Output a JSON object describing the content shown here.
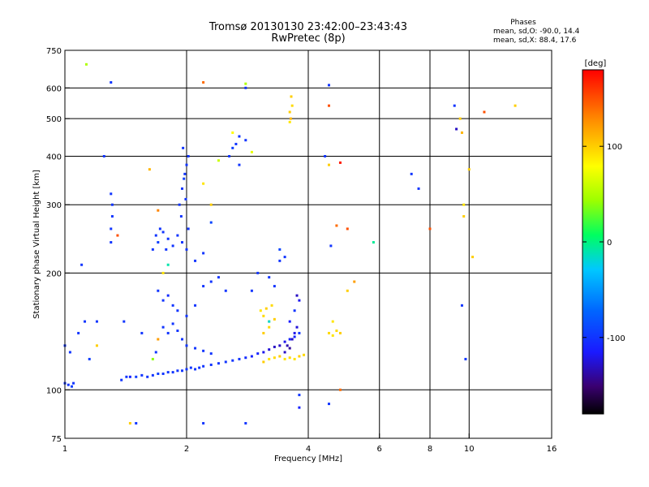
{
  "header": {
    "title_line1": "Tromsø 20130130 23:42:00–23:43:43",
    "title_line2": "RwPretec (8p)",
    "stats_heading": "Phases",
    "stats_line1": "mean, sd,O: -90.0, 14.4",
    "stats_line2": "mean, sd,X: 88.4, 17.6"
  },
  "chart_data": {
    "type": "scatter",
    "title": "Tromsø 20130130 23:42:00–23:43:43",
    "subtitle": "RwPretec (8p)",
    "xlabel": "Frequency [MHz]",
    "ylabel": "Stationary phase Virtual Height [km]",
    "x_scale": "log",
    "y_scale": "log",
    "xlim": [
      1,
      16
    ],
    "ylim": [
      75,
      750
    ],
    "x_ticks": [
      1,
      2,
      4,
      6,
      8,
      10,
      16
    ],
    "x_tick_labels": [
      "1",
      "2",
      "4",
      "6",
      "8",
      "10",
      "16"
    ],
    "y_ticks": [
      75,
      100,
      200,
      300,
      400,
      500,
      600,
      750
    ],
    "y_tick_labels": [
      "75",
      "100",
      "200",
      "300",
      "400",
      "500",
      "600",
      "750"
    ],
    "x_grid": [
      2,
      4,
      6,
      8,
      10
    ],
    "y_grid": [
      100,
      200,
      300,
      400,
      500,
      600
    ],
    "grid": true,
    "colorbar": {
      "label": "[deg]",
      "min": -180,
      "max": 180,
      "ticks": [
        -100,
        0,
        100
      ],
      "tick_labels": [
        "-100",
        "0",
        "100"
      ],
      "colormap": "rainbow"
    },
    "series": [
      {
        "points": [
          [
            1.0,
            104,
            -100
          ],
          [
            1.02,
            103,
            -100
          ],
          [
            1.04,
            102,
            -95
          ],
          [
            1.05,
            104,
            -100
          ],
          [
            1.38,
            106,
            -100
          ],
          [
            1.42,
            108,
            -100
          ],
          [
            1.45,
            108,
            -110
          ],
          [
            1.5,
            108,
            -95
          ],
          [
            1.55,
            109,
            -100
          ],
          [
            1.6,
            108,
            -100
          ],
          [
            1.65,
            109,
            -100
          ],
          [
            1.7,
            110,
            -95
          ],
          [
            1.75,
            110,
            -100
          ],
          [
            1.8,
            111,
            -100
          ],
          [
            1.85,
            111,
            -100
          ],
          [
            1.9,
            112,
            -100
          ],
          [
            1.95,
            112,
            -100
          ],
          [
            2.0,
            113,
            -100
          ],
          [
            2.05,
            114,
            -100
          ],
          [
            2.1,
            113,
            -100
          ],
          [
            2.15,
            114,
            -100
          ],
          [
            2.2,
            115,
            -100
          ],
          [
            2.3,
            116,
            -100
          ],
          [
            2.4,
            117,
            -100
          ],
          [
            2.5,
            118,
            -100
          ],
          [
            2.6,
            119,
            -100
          ],
          [
            2.7,
            120,
            -100
          ],
          [
            2.8,
            121,
            -105
          ],
          [
            2.9,
            122,
            -110
          ],
          [
            3.0,
            124,
            -110
          ],
          [
            3.1,
            125,
            -120
          ],
          [
            3.2,
            127,
            -125
          ],
          [
            3.3,
            129,
            -130
          ],
          [
            3.4,
            130,
            -130
          ],
          [
            3.5,
            133,
            -120
          ],
          [
            3.6,
            135,
            -110
          ],
          [
            3.7,
            137,
            -110
          ],
          [
            3.8,
            140,
            -100
          ],
          [
            3.1,
            118,
            100
          ],
          [
            3.2,
            120,
            90
          ],
          [
            3.3,
            121,
            95
          ],
          [
            3.4,
            122,
            100
          ],
          [
            3.5,
            120,
            90
          ],
          [
            3.6,
            121,
            95
          ],
          [
            3.7,
            120,
            90
          ],
          [
            3.8,
            122,
            100
          ],
          [
            3.9,
            123,
            95
          ],
          [
            3.05,
            160,
            90
          ],
          [
            3.1,
            155,
            95
          ],
          [
            3.15,
            162,
            100
          ],
          [
            3.2,
            150,
            90
          ],
          [
            3.25,
            165,
            95
          ],
          [
            3.3,
            152,
            100
          ],
          [
            3.2,
            145,
            95
          ],
          [
            4.5,
            140,
            95
          ],
          [
            4.6,
            138,
            90
          ],
          [
            4.7,
            142,
            95
          ],
          [
            4.8,
            140,
            100
          ],
          [
            4.6,
            150,
            90
          ],
          [
            3.5,
            125,
            -130
          ],
          [
            3.55,
            130,
            -135
          ],
          [
            3.6,
            128,
            -140
          ],
          [
            3.65,
            135,
            -130
          ],
          [
            3.7,
            140,
            -120
          ],
          [
            3.75,
            145,
            -125
          ],
          [
            3.6,
            150,
            -115
          ],
          [
            3.7,
            160,
            -100
          ],
          [
            3.75,
            175,
            -130
          ],
          [
            3.8,
            170,
            -120
          ],
          [
            1.65,
            230,
            -100
          ],
          [
            1.68,
            250,
            -100
          ],
          [
            1.7,
            240,
            -95
          ],
          [
            1.72,
            260,
            -100
          ],
          [
            1.75,
            255,
            -100
          ],
          [
            1.78,
            230,
            -100
          ],
          [
            1.8,
            245,
            -100
          ],
          [
            1.85,
            235,
            -100
          ],
          [
            1.9,
            250,
            -100
          ],
          [
            1.95,
            240,
            -100
          ],
          [
            2.0,
            230,
            -100
          ],
          [
            2.02,
            260,
            -100
          ],
          [
            1.92,
            300,
            -100
          ],
          [
            1.95,
            330,
            -100
          ],
          [
            1.98,
            360,
            -100
          ],
          [
            2.0,
            380,
            -100
          ],
          [
            2.02,
            400,
            -100
          ],
          [
            1.96,
            420,
            -100
          ],
          [
            1.97,
            350,
            -95
          ],
          [
            1.99,
            310,
            -100
          ],
          [
            1.94,
            280,
            -100
          ],
          [
            1.7,
            180,
            -100
          ],
          [
            1.75,
            170,
            -100
          ],
          [
            1.8,
            175,
            -105
          ],
          [
            1.85,
            165,
            -100
          ],
          [
            1.9,
            160,
            -100
          ],
          [
            2.0,
            155,
            -100
          ],
          [
            2.1,
            165,
            -100
          ],
          [
            2.2,
            185,
            -100
          ],
          [
            2.3,
            190,
            -100
          ],
          [
            2.4,
            195,
            -100
          ],
          [
            2.5,
            180,
            -100
          ],
          [
            1.75,
            145,
            -100
          ],
          [
            1.8,
            140,
            -100
          ],
          [
            1.85,
            148,
            -100
          ],
          [
            1.9,
            142,
            -100
          ],
          [
            1.95,
            135,
            -100
          ],
          [
            2.0,
            130,
            -100
          ],
          [
            2.1,
            128,
            -100
          ],
          [
            2.2,
            126,
            -100
          ],
          [
            2.3,
            124,
            -100
          ],
          [
            1.65,
            120,
            40
          ],
          [
            1.7,
            135,
            120
          ],
          [
            1.75,
            200,
            90
          ],
          [
            1.8,
            210,
            -10
          ],
          [
            2.1,
            215,
            -100
          ],
          [
            2.2,
            225,
            -100
          ],
          [
            2.3,
            270,
            -90
          ],
          [
            2.3,
            300,
            100
          ],
          [
            2.2,
            340,
            90
          ],
          [
            2.55,
            400,
            -100
          ],
          [
            2.6,
            420,
            -95
          ],
          [
            2.65,
            430,
            -100
          ],
          [
            2.7,
            450,
            -100
          ],
          [
            2.7,
            380,
            -100
          ],
          [
            2.8,
            440,
            -100
          ],
          [
            2.4,
            390,
            60
          ],
          [
            2.6,
            460,
            80
          ],
          [
            2.9,
            410,
            70
          ],
          [
            1.3,
            240,
            -100
          ],
          [
            1.3,
            260,
            -100
          ],
          [
            1.31,
            280,
            -100
          ],
          [
            1.31,
            300,
            -100
          ],
          [
            1.3,
            320,
            -100
          ],
          [
            1.35,
            250,
            150
          ],
          [
            1.62,
            370,
            110
          ],
          [
            1.7,
            290,
            130
          ],
          [
            3.6,
            520,
            100
          ],
          [
            3.65,
            540,
            95
          ],
          [
            3.63,
            570,
            100
          ],
          [
            3.62,
            500,
            110
          ],
          [
            3.6,
            490,
            90
          ],
          [
            1.13,
            690,
            50
          ],
          [
            1.3,
            620,
            -100
          ],
          [
            2.2,
            620,
            140
          ],
          [
            2.8,
            615,
            50
          ],
          [
            2.8,
            600,
            -100
          ],
          [
            4.5,
            540,
            150
          ],
          [
            4.5,
            610,
            -100
          ],
          [
            4.4,
            400,
            -100
          ],
          [
            4.5,
            380,
            100
          ],
          [
            4.8,
            385,
            170
          ],
          [
            4.55,
            235,
            -100
          ],
          [
            4.7,
            265,
            140
          ],
          [
            5.0,
            260,
            150
          ],
          [
            5.0,
            180,
            100
          ],
          [
            5.2,
            190,
            120
          ],
          [
            5.8,
            240,
            -5
          ],
          [
            7.2,
            360,
            -100
          ],
          [
            7.5,
            330,
            -100
          ],
          [
            8.0,
            260,
            150
          ],
          [
            9.2,
            540,
            -100
          ],
          [
            9.3,
            470,
            -130
          ],
          [
            9.5,
            500,
            100
          ],
          [
            9.6,
            460,
            110
          ],
          [
            9.7,
            300,
            90
          ],
          [
            9.7,
            280,
            100
          ],
          [
            9.6,
            165,
            -100
          ],
          [
            9.8,
            120,
            -100
          ],
          [
            10.0,
            370,
            100
          ],
          [
            10.2,
            220,
            100
          ],
          [
            10.9,
            520,
            150
          ],
          [
            13.0,
            540,
            100
          ],
          [
            1.0,
            130,
            -100
          ],
          [
            1.03,
            125,
            -100
          ],
          [
            1.08,
            140,
            -100
          ],
          [
            1.1,
            210,
            -100
          ],
          [
            1.12,
            150,
            -100
          ],
          [
            1.15,
            120,
            -95
          ],
          [
            1.2,
            150,
            -100
          ],
          [
            1.25,
            400,
            -100
          ],
          [
            1.2,
            130,
            100
          ],
          [
            1.4,
            150,
            -100
          ],
          [
            1.45,
            82,
            100
          ],
          [
            1.5,
            82,
            -100
          ],
          [
            1.55,
            140,
            -100
          ],
          [
            1.68,
            125,
            -100
          ],
          [
            2.2,
            82,
            -100
          ],
          [
            2.8,
            82,
            -100
          ],
          [
            3.4,
            215,
            -100
          ],
          [
            3.5,
            220,
            -100
          ],
          [
            3.4,
            230,
            -90
          ],
          [
            3.8,
            97,
            -100
          ],
          [
            3.8,
            90,
            -110
          ],
          [
            4.5,
            92,
            -100
          ],
          [
            4.8,
            100,
            140
          ],
          [
            3.1,
            140,
            100
          ],
          [
            3.2,
            150,
            -20
          ],
          [
            2.9,
            180,
            -100
          ],
          [
            3.0,
            200,
            -100
          ],
          [
            3.2,
            195,
            -100
          ],
          [
            3.3,
            185,
            -100
          ]
        ]
      }
    ]
  }
}
